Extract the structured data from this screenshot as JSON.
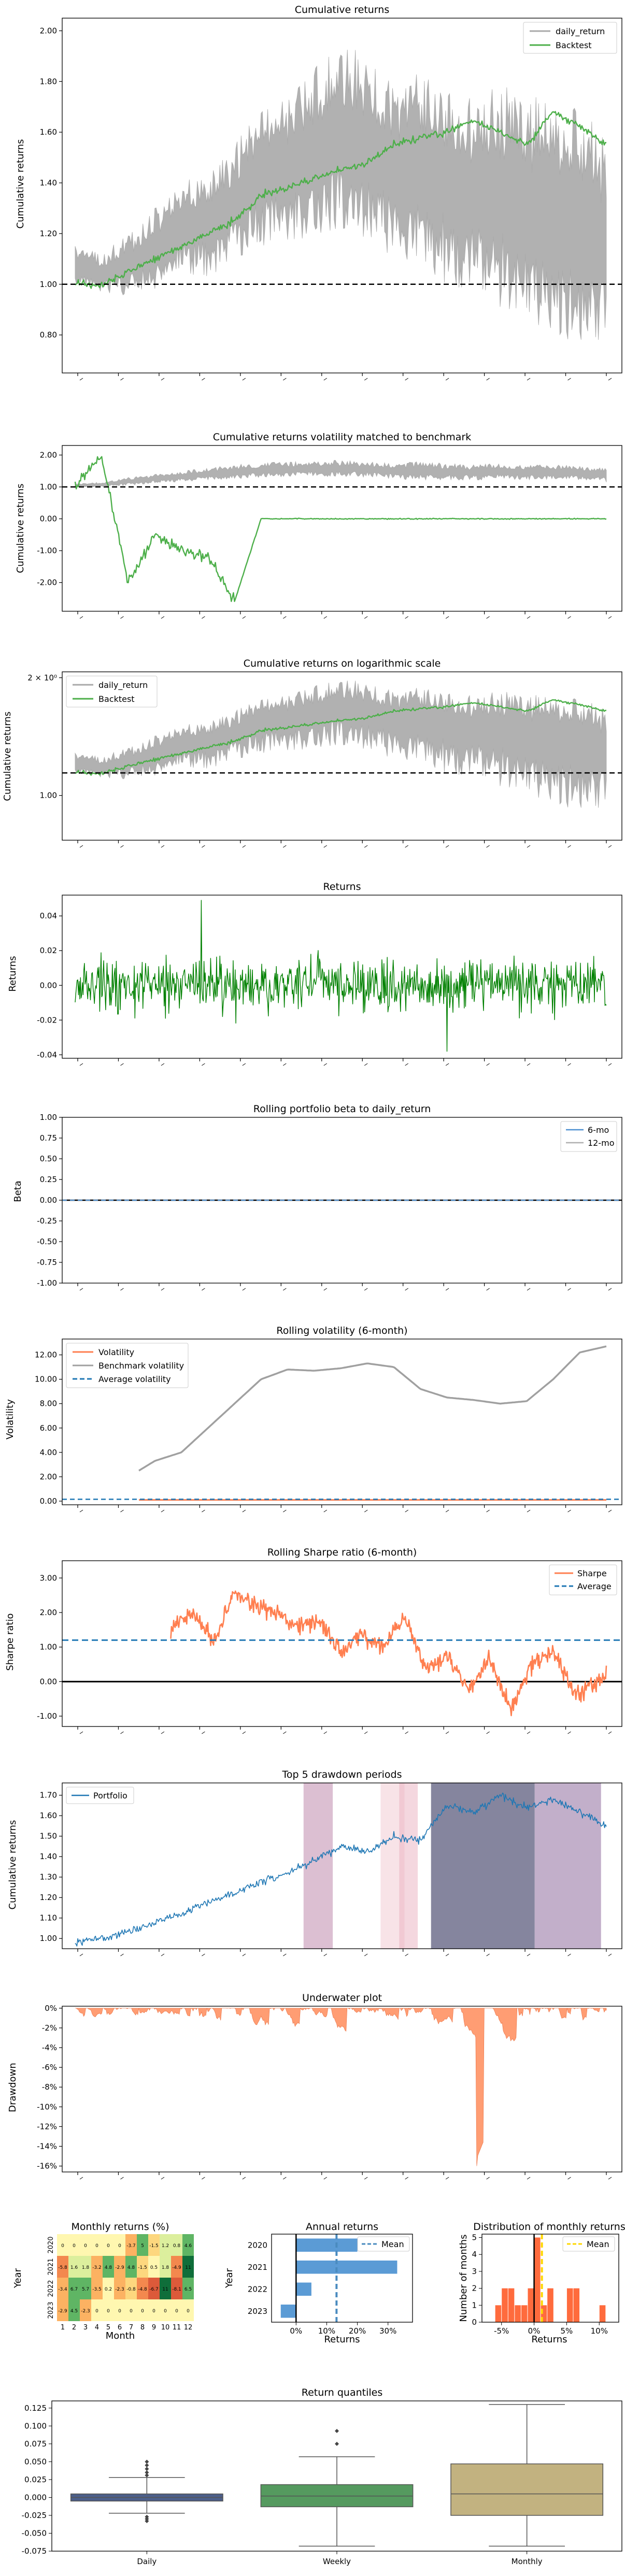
{
  "chart_data": [
    {
      "id": "cumret",
      "type": "line",
      "title": "Cumulative returns",
      "ylabel": "Cumulative returns",
      "ylim": [
        0.65,
        2.05
      ],
      "yticks": [
        "0.80",
        "1.00",
        "1.20",
        "1.40",
        "1.60",
        "1.80",
        "2.00"
      ],
      "legend": "top-right",
      "reference_line": 1.0,
      "x": [
        0,
        5,
        10,
        15,
        20,
        25,
        30,
        35,
        40,
        45,
        50,
        55,
        60,
        65,
        70,
        75,
        80,
        85,
        90,
        95,
        100
      ],
      "series": [
        {
          "name": "daily_return",
          "color": "#a9a9a9",
          "band_low": [
            1.0,
            0.97,
            0.95,
            0.98,
            1.05,
            1.02,
            1.1,
            1.15,
            1.15,
            1.2,
            1.2,
            1.18,
            1.1,
            1.05,
            1.0,
            0.95,
            0.9,
            0.85,
            0.8,
            0.75,
            0.72
          ],
          "band_high": [
            1.15,
            1.12,
            1.2,
            1.3,
            1.4,
            1.45,
            1.55,
            1.7,
            1.75,
            1.85,
            1.97,
            1.9,
            1.8,
            1.85,
            1.8,
            1.75,
            1.8,
            1.75,
            1.72,
            1.7,
            1.6
          ]
        },
        {
          "name": "Backtest",
          "color": "#4daf4a",
          "values": [
            1.0,
            1.0,
            1.05,
            1.1,
            1.15,
            1.2,
            1.25,
            1.35,
            1.38,
            1.42,
            1.45,
            1.48,
            1.55,
            1.58,
            1.6,
            1.65,
            1.6,
            1.55,
            1.68,
            1.62,
            1.55
          ]
        }
      ]
    },
    {
      "id": "volmatched",
      "type": "line",
      "title": "Cumulative returns volatility matched to benchmark",
      "ylabel": "Cumulative returns",
      "ylim": [
        -2.9,
        2.3
      ],
      "yticks": [
        "-2.00",
        "-1.00",
        "0.00",
        "1.00",
        "2.00"
      ],
      "reference_line": 1.0,
      "x": [
        0,
        5,
        10,
        15,
        20,
        25,
        30,
        35,
        40,
        45,
        50,
        55,
        60,
        65,
        70,
        75,
        80,
        85,
        90,
        95,
        100
      ],
      "series": [
        {
          "name": "daily_return",
          "color": "#a9a9a9",
          "band_low": [
            1.0,
            1.0,
            1.05,
            1.1,
            1.15,
            1.2,
            1.25,
            1.3,
            1.3,
            1.35,
            1.3,
            1.3,
            1.25,
            1.2,
            1.2,
            1.2,
            1.25,
            1.2,
            1.25,
            1.2,
            1.15
          ],
          "band_high": [
            1.1,
            1.15,
            1.3,
            1.4,
            1.5,
            1.6,
            1.7,
            1.75,
            1.8,
            1.8,
            1.85,
            1.8,
            1.75,
            1.8,
            1.75,
            1.7,
            1.75,
            1.7,
            1.7,
            1.65,
            1.6
          ]
        },
        {
          "name": "Backtest",
          "color": "#4daf4a",
          "values": [
            1.0,
            2.0,
            -2.0,
            -0.5,
            -1.0,
            -1.2,
            -2.6,
            0.0,
            0.0,
            0.0,
            0.0,
            0.0,
            0.0,
            0.0,
            0.0,
            0.0,
            0.0,
            0.0,
            0.0,
            0.0,
            0.0
          ]
        }
      ]
    },
    {
      "id": "logscale",
      "type": "line",
      "title": "Cumulative returns on logarithmic scale",
      "ylabel": "Cumulative returns",
      "yscale": "log",
      "ylim": [
        0.62,
        2.05
      ],
      "yticks": [
        "1.00",
        "2 × 10⁰"
      ],
      "legend": "top-left",
      "reference_line": 1.0,
      "x": [
        0,
        5,
        10,
        15,
        20,
        25,
        30,
        35,
        40,
        45,
        50,
        55,
        60,
        65,
        70,
        75,
        80,
        85,
        90,
        95,
        100
      ],
      "series": [
        {
          "name": "daily_return",
          "color": "#a9a9a9",
          "band_low": [
            1.0,
            0.97,
            0.95,
            0.98,
            1.05,
            1.02,
            1.1,
            1.15,
            1.15,
            1.2,
            1.2,
            1.18,
            1.1,
            1.05,
            1.0,
            0.95,
            0.9,
            0.85,
            0.8,
            0.75,
            0.72
          ],
          "band_high": [
            1.15,
            1.12,
            1.2,
            1.3,
            1.4,
            1.45,
            1.55,
            1.7,
            1.75,
            1.85,
            1.97,
            1.9,
            1.8,
            1.85,
            1.8,
            1.75,
            1.8,
            1.75,
            1.72,
            1.7,
            1.6
          ]
        },
        {
          "name": "Backtest",
          "color": "#4daf4a",
          "values": [
            1.0,
            1.0,
            1.05,
            1.1,
            1.15,
            1.2,
            1.25,
            1.35,
            1.38,
            1.42,
            1.45,
            1.48,
            1.55,
            1.58,
            1.6,
            1.65,
            1.6,
            1.55,
            1.68,
            1.62,
            1.55
          ]
        }
      ]
    },
    {
      "id": "returns",
      "type": "line",
      "title": "Returns",
      "ylabel": "Returns",
      "ylim": [
        -0.042,
        0.052
      ],
      "yticks": [
        "-0.04",
        "-0.02",
        "0.00",
        "0.02",
        "0.04"
      ],
      "series": [
        {
          "name": "Returns",
          "color": "#008000",
          "amplitude": 0.015,
          "max": 0.049,
          "min": -0.038
        }
      ]
    },
    {
      "id": "beta",
      "type": "line",
      "title": "Rolling portfolio beta to daily_return",
      "ylabel": "Beta",
      "ylim": [
        -1.0,
        1.0
      ],
      "yticks": [
        "-1.00",
        "-0.75",
        "-0.50",
        "-0.25",
        "0.00",
        "0.25",
        "0.50",
        "0.75",
        "1.00"
      ],
      "legend": "top-right",
      "reference_line": 0.0,
      "series": [
        {
          "name": "6-mo",
          "color": "#4c8fd1",
          "value": 0.0
        },
        {
          "name": "12-mo",
          "color": "#b0b0b0",
          "value": 0.0
        }
      ]
    },
    {
      "id": "rollvol",
      "type": "line",
      "title": "Rolling volatility (6-month)",
      "ylabel": "Volatility",
      "ylim": [
        -0.3,
        13.3
      ],
      "yticks": [
        "0.00",
        "2.00",
        "4.00",
        "6.00",
        "8.00",
        "10.00",
        "12.00"
      ],
      "legend": "top-left",
      "x": [
        12,
        15,
        20,
        25,
        30,
        35,
        40,
        45,
        50,
        55,
        60,
        65,
        70,
        75,
        80,
        85,
        90,
        95,
        100
      ],
      "series": [
        {
          "name": "Volatility",
          "color": "#ff7f50",
          "values": [
            0.1,
            0.1,
            0.1,
            0.1,
            0.1,
            0.1,
            0.1,
            0.1,
            0.1,
            0.1,
            0.1,
            0.1,
            0.1,
            0.1,
            0.1,
            0.1,
            0.1,
            0.1,
            0.1
          ]
        },
        {
          "name": "Benchmark volatility",
          "color": "#a0a0a0",
          "values": [
            2.5,
            3.3,
            4.0,
            6.0,
            8.0,
            10.0,
            10.8,
            10.7,
            10.9,
            11.3,
            11.0,
            9.2,
            8.5,
            8.3,
            8.0,
            8.2,
            10.0,
            12.2,
            12.7
          ]
        },
        {
          "name": "Average volatility",
          "color": "#1f77b4",
          "value": 0.15
        }
      ]
    },
    {
      "id": "sharpe",
      "type": "line",
      "title": "Rolling Sharpe ratio (6-month)",
      "ylabel": "Sharpe ratio",
      "ylim": [
        -1.3,
        3.5
      ],
      "yticks": [
        "-1.00",
        "0.00",
        "1.00",
        "2.00",
        "3.00"
      ],
      "legend": "top-right",
      "reference_line": 0.0,
      "x": [
        18,
        22,
        26,
        30,
        34,
        38,
        42,
        46,
        50,
        54,
        58,
        62,
        66,
        70,
        74,
        78,
        82,
        86,
        90,
        94,
        98,
        100
      ],
      "series": [
        {
          "name": "Sharpe",
          "color": "#ff7f50",
          "values": [
            1.5,
            2.0,
            1.2,
            2.5,
            2.2,
            2.0,
            1.6,
            1.8,
            0.8,
            1.4,
            1.0,
            1.9,
            0.3,
            0.8,
            -0.2,
            0.7,
            -0.8,
            0.5,
            0.9,
            -0.4,
            0.0,
            0.2
          ]
        },
        {
          "name": "Average",
          "color": "#1f77b4",
          "value": 1.2
        }
      ]
    },
    {
      "id": "drawdown",
      "type": "line",
      "title": "Top 5 drawdown periods",
      "ylabel": "Cumulative returns",
      "ylim": [
        0.95,
        1.76
      ],
      "yticks": [
        "1.00",
        "1.10",
        "1.20",
        "1.30",
        "1.40",
        "1.50",
        "1.60",
        "1.70"
      ],
      "legend": "top-left",
      "x": [
        0,
        5,
        10,
        15,
        20,
        25,
        30,
        35,
        40,
        45,
        50,
        55,
        60,
        65,
        70,
        75,
        80,
        85,
        90,
        95,
        100
      ],
      "series": [
        {
          "name": "Portfolio",
          "color": "#1f77b4",
          "values": [
            0.98,
            1.0,
            1.03,
            1.08,
            1.12,
            1.18,
            1.22,
            1.28,
            1.32,
            1.38,
            1.45,
            1.42,
            1.5,
            1.48,
            1.65,
            1.62,
            1.7,
            1.64,
            1.68,
            1.62,
            1.55
          ]
        }
      ],
      "shaded_periods": [
        [
          43,
          48.5
        ],
        [
          57.5,
          62
        ],
        [
          61,
          64.5
        ],
        [
          67,
          86.5
        ],
        [
          86.5,
          99
        ]
      ]
    },
    {
      "id": "underwater",
      "type": "area",
      "title": "Underwater plot",
      "ylabel": "Drawdown",
      "ylim": [
        -16.6,
        0.2
      ],
      "yticks": [
        "0%",
        "-2%",
        "-4%",
        "-6%",
        "-8%",
        "-10%",
        "-12%",
        "-14%",
        "-16%"
      ],
      "series": [
        {
          "name": "Drawdown",
          "color": "#ff8c5a",
          "min": -16
        }
      ]
    },
    {
      "id": "monthly",
      "type": "heatmap",
      "title": "Monthly returns (%)",
      "xlabel": "Month",
      "ylabel": "Year",
      "categories": [
        "1",
        "2",
        "3",
        "4",
        "5",
        "6",
        "7",
        "8",
        "9",
        "10",
        "11",
        "12"
      ],
      "rows": [
        "2020",
        "2021",
        "2022",
        "2023"
      ],
      "values": [
        [
          "0.0",
          "0.0",
          "0.0",
          "0.0",
          "0.0",
          "0.0",
          "-3.7",
          "5.0",
          "-1.5",
          "1.2",
          "0.8",
          "4.6"
        ],
        [
          "-5.8",
          "1.6",
          "1.8",
          "-3.2",
          "4.8",
          "-2.9",
          "4.8",
          "-1.5",
          "0.5",
          "1.8",
          "-4.9",
          "11"
        ],
        [
          "-3.4",
          "6.7",
          "5.7",
          "-3.5",
          "0.2",
          "-2.3",
          "-0.8",
          "-4.8",
          "-6.7",
          "11",
          "-8.1",
          "6.5"
        ],
        [
          "-2.9",
          "4.5",
          "-2.3",
          "0.0",
          "0.0",
          "0.0",
          "0.0",
          "0.0",
          "0.0",
          "0.0",
          "0.0",
          "0.0"
        ]
      ],
      "display_labels": [
        [
          "0",
          "0",
          "0",
          "0",
          "0",
          "0",
          "-3.7",
          "5",
          "-1.5",
          "1.2",
          "0.8",
          "4.6"
        ],
        [
          "-5.8",
          "1.6",
          "1.8",
          "-3.2",
          "4.8",
          "-2.9",
          "4.8",
          "-1.5",
          "0.5",
          "1.8",
          "-4.9",
          "11"
        ],
        [
          "-3.4",
          "6.7",
          "5.7",
          "-3.5",
          "0.2",
          "-2.3",
          "-0.8",
          "-4.8",
          "-6.7",
          "11",
          "-8.1",
          "6.5"
        ],
        [
          "-2.9",
          "4.5",
          "-2.3",
          "0",
          "0",
          "0",
          "0",
          "0",
          "0",
          "0",
          "0",
          "0"
        ]
      ]
    },
    {
      "id": "annual",
      "type": "bar",
      "title": "Annual returns",
      "xlabel": "Returns",
      "ylabel": "Year",
      "categories": [
        "2020",
        "2021",
        "2022",
        "2023"
      ],
      "values": [
        20.0,
        33.0,
        5.0,
        -5.0
      ],
      "xlim": [
        -8,
        38
      ],
      "xticks": [
        "0%",
        "10%",
        "20%",
        "30%"
      ],
      "mean": 13.2,
      "legend_label": "Mean",
      "color": "#5b9bd5"
    },
    {
      "id": "distribution",
      "type": "bar",
      "title": "Distribution of monthly returns",
      "xlabel": "Returns",
      "ylabel": "Number of months",
      "bin_edges": [
        -6,
        -5,
        -4,
        -3,
        -2,
        -1,
        0,
        1,
        2,
        3,
        4,
        5,
        6,
        7,
        8,
        9,
        10,
        11,
        12
      ],
      "values": [
        1,
        2,
        2,
        1,
        1,
        2,
        5,
        1,
        2,
        0,
        0,
        2,
        2,
        0,
        0,
        0,
        1,
        0
      ],
      "xlim": [
        -8,
        13
      ],
      "ylim": [
        0,
        5.2
      ],
      "yticks": [
        "0",
        "1",
        "2",
        "3",
        "4",
        "5"
      ],
      "xticks": [
        "-5%",
        "0%",
        "5%",
        "10%"
      ],
      "mean": 1.2,
      "legend_label": "Mean",
      "color": "#ff6b3d"
    },
    {
      "id": "quantiles",
      "type": "box",
      "title": "Return quantiles",
      "categories": [
        "Daily",
        "Weekly",
        "Monthly"
      ],
      "colors": [
        "#4c5f8a",
        "#559a5f",
        "#c2b280"
      ],
      "ylim": [
        -0.075,
        0.135
      ],
      "yticks": [
        "-0.075",
        "-0.050",
        "-0.025",
        "0.000",
        "0.025",
        "0.050",
        "0.075",
        "0.100",
        "0.125"
      ],
      "boxes": [
        {
          "whislo": -0.022,
          "q1": -0.005,
          "med": 0.0,
          "q3": 0.005,
          "whishi": 0.028,
          "fliers": [
            0.031,
            0.035,
            0.04,
            0.045,
            0.05,
            -0.027,
            -0.03,
            -0.033
          ]
        },
        {
          "whislo": -0.068,
          "q1": -0.013,
          "med": 0.002,
          "q3": 0.018,
          "whishi": 0.057,
          "fliers": [
            0.075,
            0.093
          ]
        },
        {
          "whislo": -0.068,
          "q1": -0.025,
          "med": 0.005,
          "q3": 0.047,
          "whishi": 0.13,
          "fliers": []
        }
      ]
    }
  ]
}
